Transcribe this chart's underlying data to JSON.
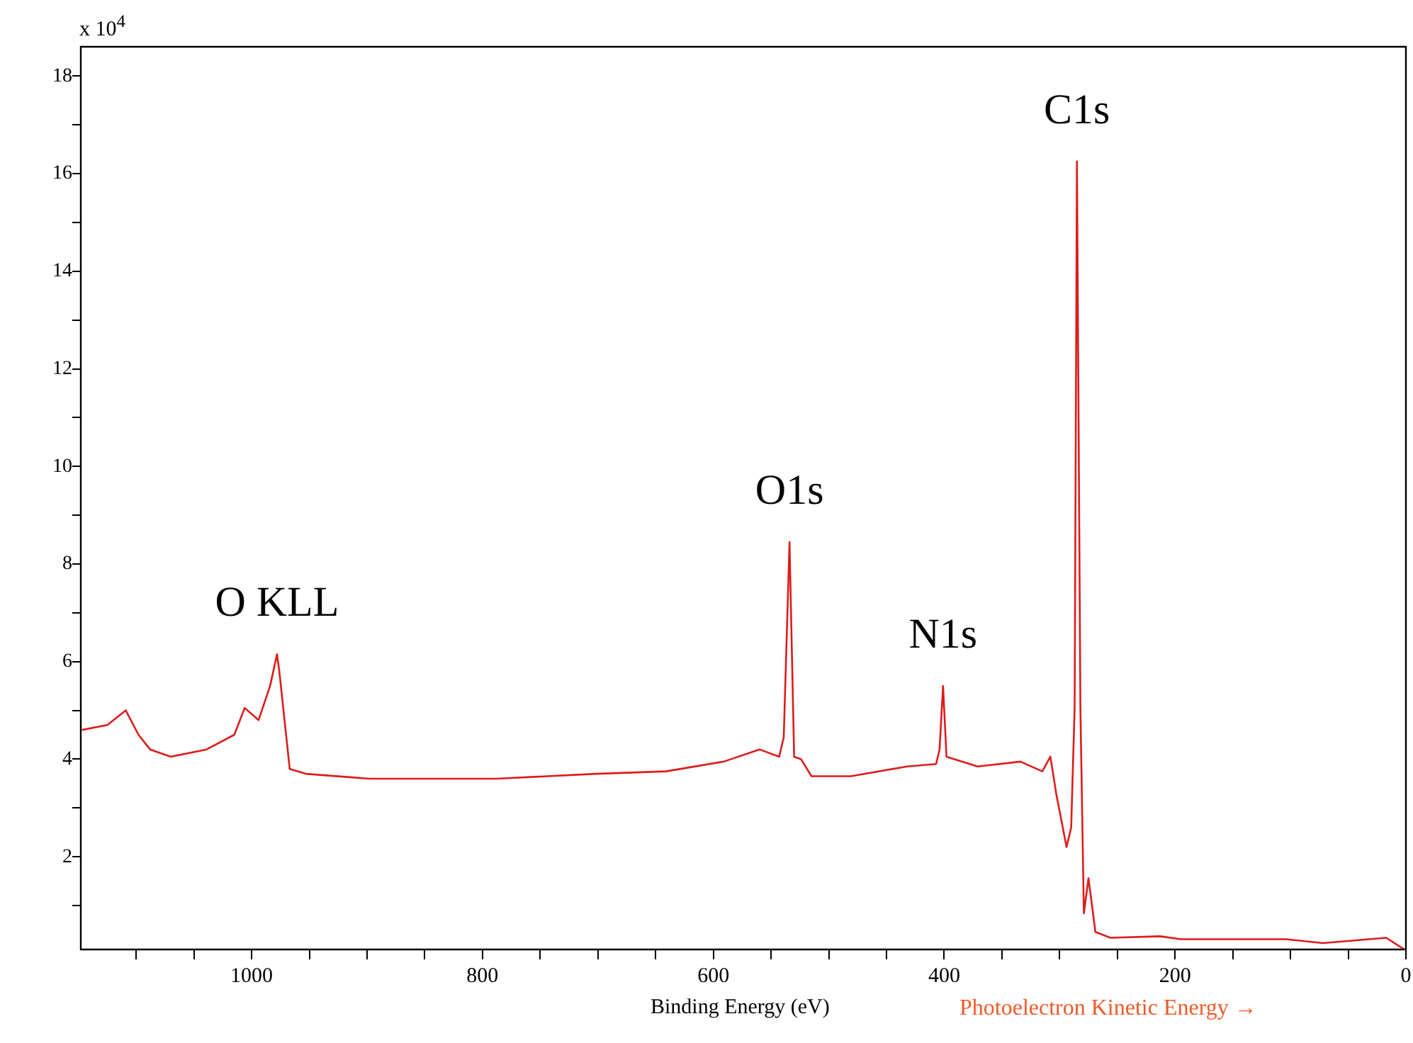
{
  "chart_data": {
    "type": "line",
    "xlabel": "Binding Energy (eV)",
    "ylabel": "x 10$^{4}$",
    "annotations": [
      {
        "text": "C1s",
        "x": 285,
        "y": 16.25
      },
      {
        "text": "O1s",
        "x": 534,
        "y": 8.45
      },
      {
        "text": "N1s",
        "x": 401,
        "y": 5.5
      },
      {
        "text": "O KLL",
        "x": 978,
        "y": 6.15
      },
      "Photoelectron Kinetic Energy →"
    ],
    "x": [
      1147,
      1125,
      1109,
      1098,
      1088,
      1070,
      1039,
      1015,
      1006,
      994,
      984,
      978,
      976,
      967,
      953,
      898,
      788,
      702,
      641,
      591,
      560,
      543,
      539,
      534,
      530,
      524,
      515,
      481,
      432,
      407,
      404,
      401,
      398,
      371,
      334,
      315,
      308,
      303,
      294,
      290,
      287,
      285,
      282,
      279,
      275,
      269,
      256,
      213,
      195,
      153,
      104,
      72,
      17,
      2
    ],
    "values": [
      4.6,
      4.7,
      5.0,
      4.5,
      4.2,
      4.05,
      4.2,
      4.5,
      5.05,
      4.8,
      5.5,
      6.15,
      5.8,
      3.8,
      3.7,
      3.6,
      3.6,
      3.7,
      3.75,
      3.95,
      4.2,
      4.05,
      4.45,
      8.45,
      4.05,
      4.0,
      3.65,
      3.65,
      3.85,
      3.9,
      4.2,
      5.5,
      4.05,
      3.85,
      3.95,
      3.75,
      4.05,
      3.3,
      2.2,
      2.6,
      5.05,
      16.25,
      5.05,
      0.84,
      1.56,
      0.46,
      0.34,
      0.37,
      0.31,
      0.31,
      0.31,
      0.23,
      0.34,
      0.11
    ],
    "color": "#dd1c1c",
    "xlim": [
      1148,
      0
    ],
    "ylim": [
      0.1,
      18.6
    ],
    "xticks": [
      {
        "value": 0,
        "label": "0"
      },
      {
        "value": 50,
        "label": null
      },
      {
        "value": 100,
        "label": null
      },
      {
        "value": 150,
        "label": null
      },
      {
        "value": 200,
        "label": "200"
      },
      {
        "value": 250,
        "label": null
      },
      {
        "value": 300,
        "label": null
      },
      {
        "value": 350,
        "label": null
      },
      {
        "value": 400,
        "label": "400"
      },
      {
        "value": 450,
        "label": null
      },
      {
        "value": 500,
        "label": null
      },
      {
        "value": 550,
        "label": null
      },
      {
        "value": 600,
        "label": "600"
      },
      {
        "value": 650,
        "label": null
      },
      {
        "value": 700,
        "label": null
      },
      {
        "value": 750,
        "label": null
      },
      {
        "value": 800,
        "label": "800"
      },
      {
        "value": 850,
        "label": null
      },
      {
        "value": 900,
        "label": null
      },
      {
        "value": 950,
        "label": null
      },
      {
        "value": 1000,
        "label": "1000"
      },
      {
        "value": 1050,
        "label": null
      },
      {
        "value": 1100,
        "label": null
      }
    ],
    "yticks": [
      {
        "value": 1,
        "label": null
      },
      2,
      {
        "value": 3,
        "label": null
      },
      4,
      {
        "value": 5,
        "label": null
      },
      6,
      {
        "value": 7,
        "label": null
      },
      8,
      {
        "value": 9,
        "label": null
      },
      10,
      {
        "value": 11,
        "label": null
      },
      12,
      {
        "value": 13,
        "label": null
      },
      14,
      {
        "value": 15,
        "label": null
      },
      16,
      {
        "value": 17,
        "label": null
      },
      18
    ]
  }
}
